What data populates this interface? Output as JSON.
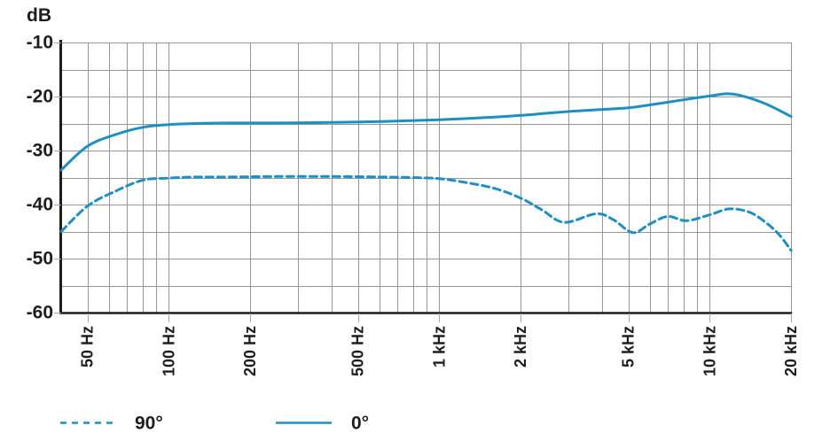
{
  "chart_data": {
    "type": "line",
    "title": "",
    "x_scale": "log",
    "x_range_hz": [
      40,
      20000
    ],
    "y_range_db": [
      -60,
      -10
    ],
    "y_unit_label": "dB",
    "y_tick_values": [
      -10,
      -20,
      -30,
      -40,
      -50,
      -60
    ],
    "y_tick_labels": [
      "-10",
      "-20",
      "-30",
      "-40",
      "-50",
      "-60"
    ],
    "y_minor_step_db": 5,
    "x_tick_values": [
      50,
      100,
      200,
      500,
      1000,
      2000,
      5000,
      10000,
      20000
    ],
    "x_tick_labels": [
      "50 Hz",
      "100 Hz",
      "200 Hz",
      "500 Hz",
      "1 kHz",
      "2 kHz",
      "5 kHz",
      "10 kHz",
      "20 kHz"
    ],
    "grid": "on, logarithmic minor gridlines and 5 dB horizontal gridlines",
    "legend_position": "bottom-left",
    "series": [
      {
        "name": "90°",
        "line_style": "dashed",
        "points_hz_db": [
          [
            40,
            -45.0
          ],
          [
            50,
            -40.3
          ],
          [
            63,
            -37.6
          ],
          [
            80,
            -35.5
          ],
          [
            100,
            -35.1
          ],
          [
            125,
            -34.9
          ],
          [
            160,
            -34.9
          ],
          [
            250,
            -34.8
          ],
          [
            400,
            -34.8
          ],
          [
            630,
            -34.9
          ],
          [
            800,
            -35.0
          ],
          [
            1000,
            -35.2
          ],
          [
            1250,
            -35.9
          ],
          [
            1600,
            -37.0
          ],
          [
            2000,
            -38.8
          ],
          [
            2400,
            -41.0
          ],
          [
            2900,
            -43.3
          ],
          [
            3800,
            -41.7
          ],
          [
            4400,
            -42.8
          ],
          [
            5200,
            -45.2
          ],
          [
            6000,
            -43.6
          ],
          [
            7000,
            -42.2
          ],
          [
            8200,
            -43.0
          ],
          [
            10000,
            -41.9
          ],
          [
            11800,
            -40.8
          ],
          [
            14000,
            -41.4
          ],
          [
            16000,
            -43.2
          ],
          [
            18000,
            -45.5
          ],
          [
            20000,
            -48.5
          ]
        ]
      },
      {
        "name": "0°",
        "line_style": "solid",
        "points_hz_db": [
          [
            40,
            -33.6
          ],
          [
            50,
            -29.2
          ],
          [
            63,
            -27.1
          ],
          [
            80,
            -25.7
          ],
          [
            100,
            -25.2
          ],
          [
            125,
            -25.0
          ],
          [
            160,
            -24.9
          ],
          [
            250,
            -24.9
          ],
          [
            400,
            -24.8
          ],
          [
            630,
            -24.6
          ],
          [
            1000,
            -24.3
          ],
          [
            1600,
            -23.8
          ],
          [
            2000,
            -23.5
          ],
          [
            2500,
            -23.1
          ],
          [
            3150,
            -22.7
          ],
          [
            4000,
            -22.4
          ],
          [
            5000,
            -22.1
          ],
          [
            6300,
            -21.4
          ],
          [
            8000,
            -20.6
          ],
          [
            10000,
            -19.9
          ],
          [
            11500,
            -19.5
          ],
          [
            13000,
            -19.8
          ],
          [
            16000,
            -21.3
          ],
          [
            20000,
            -23.7
          ]
        ]
      }
    ],
    "colors": {
      "curve": "#1e8fc2",
      "grid": "#969696",
      "axis": "#1d1d1b",
      "tick": "#a6a6a6",
      "text": "#1d1d1b",
      "background": "#ffffff"
    },
    "legend": [
      {
        "label": "90°",
        "style": "dashed"
      },
      {
        "label": "0°",
        "style": "solid"
      }
    ]
  }
}
